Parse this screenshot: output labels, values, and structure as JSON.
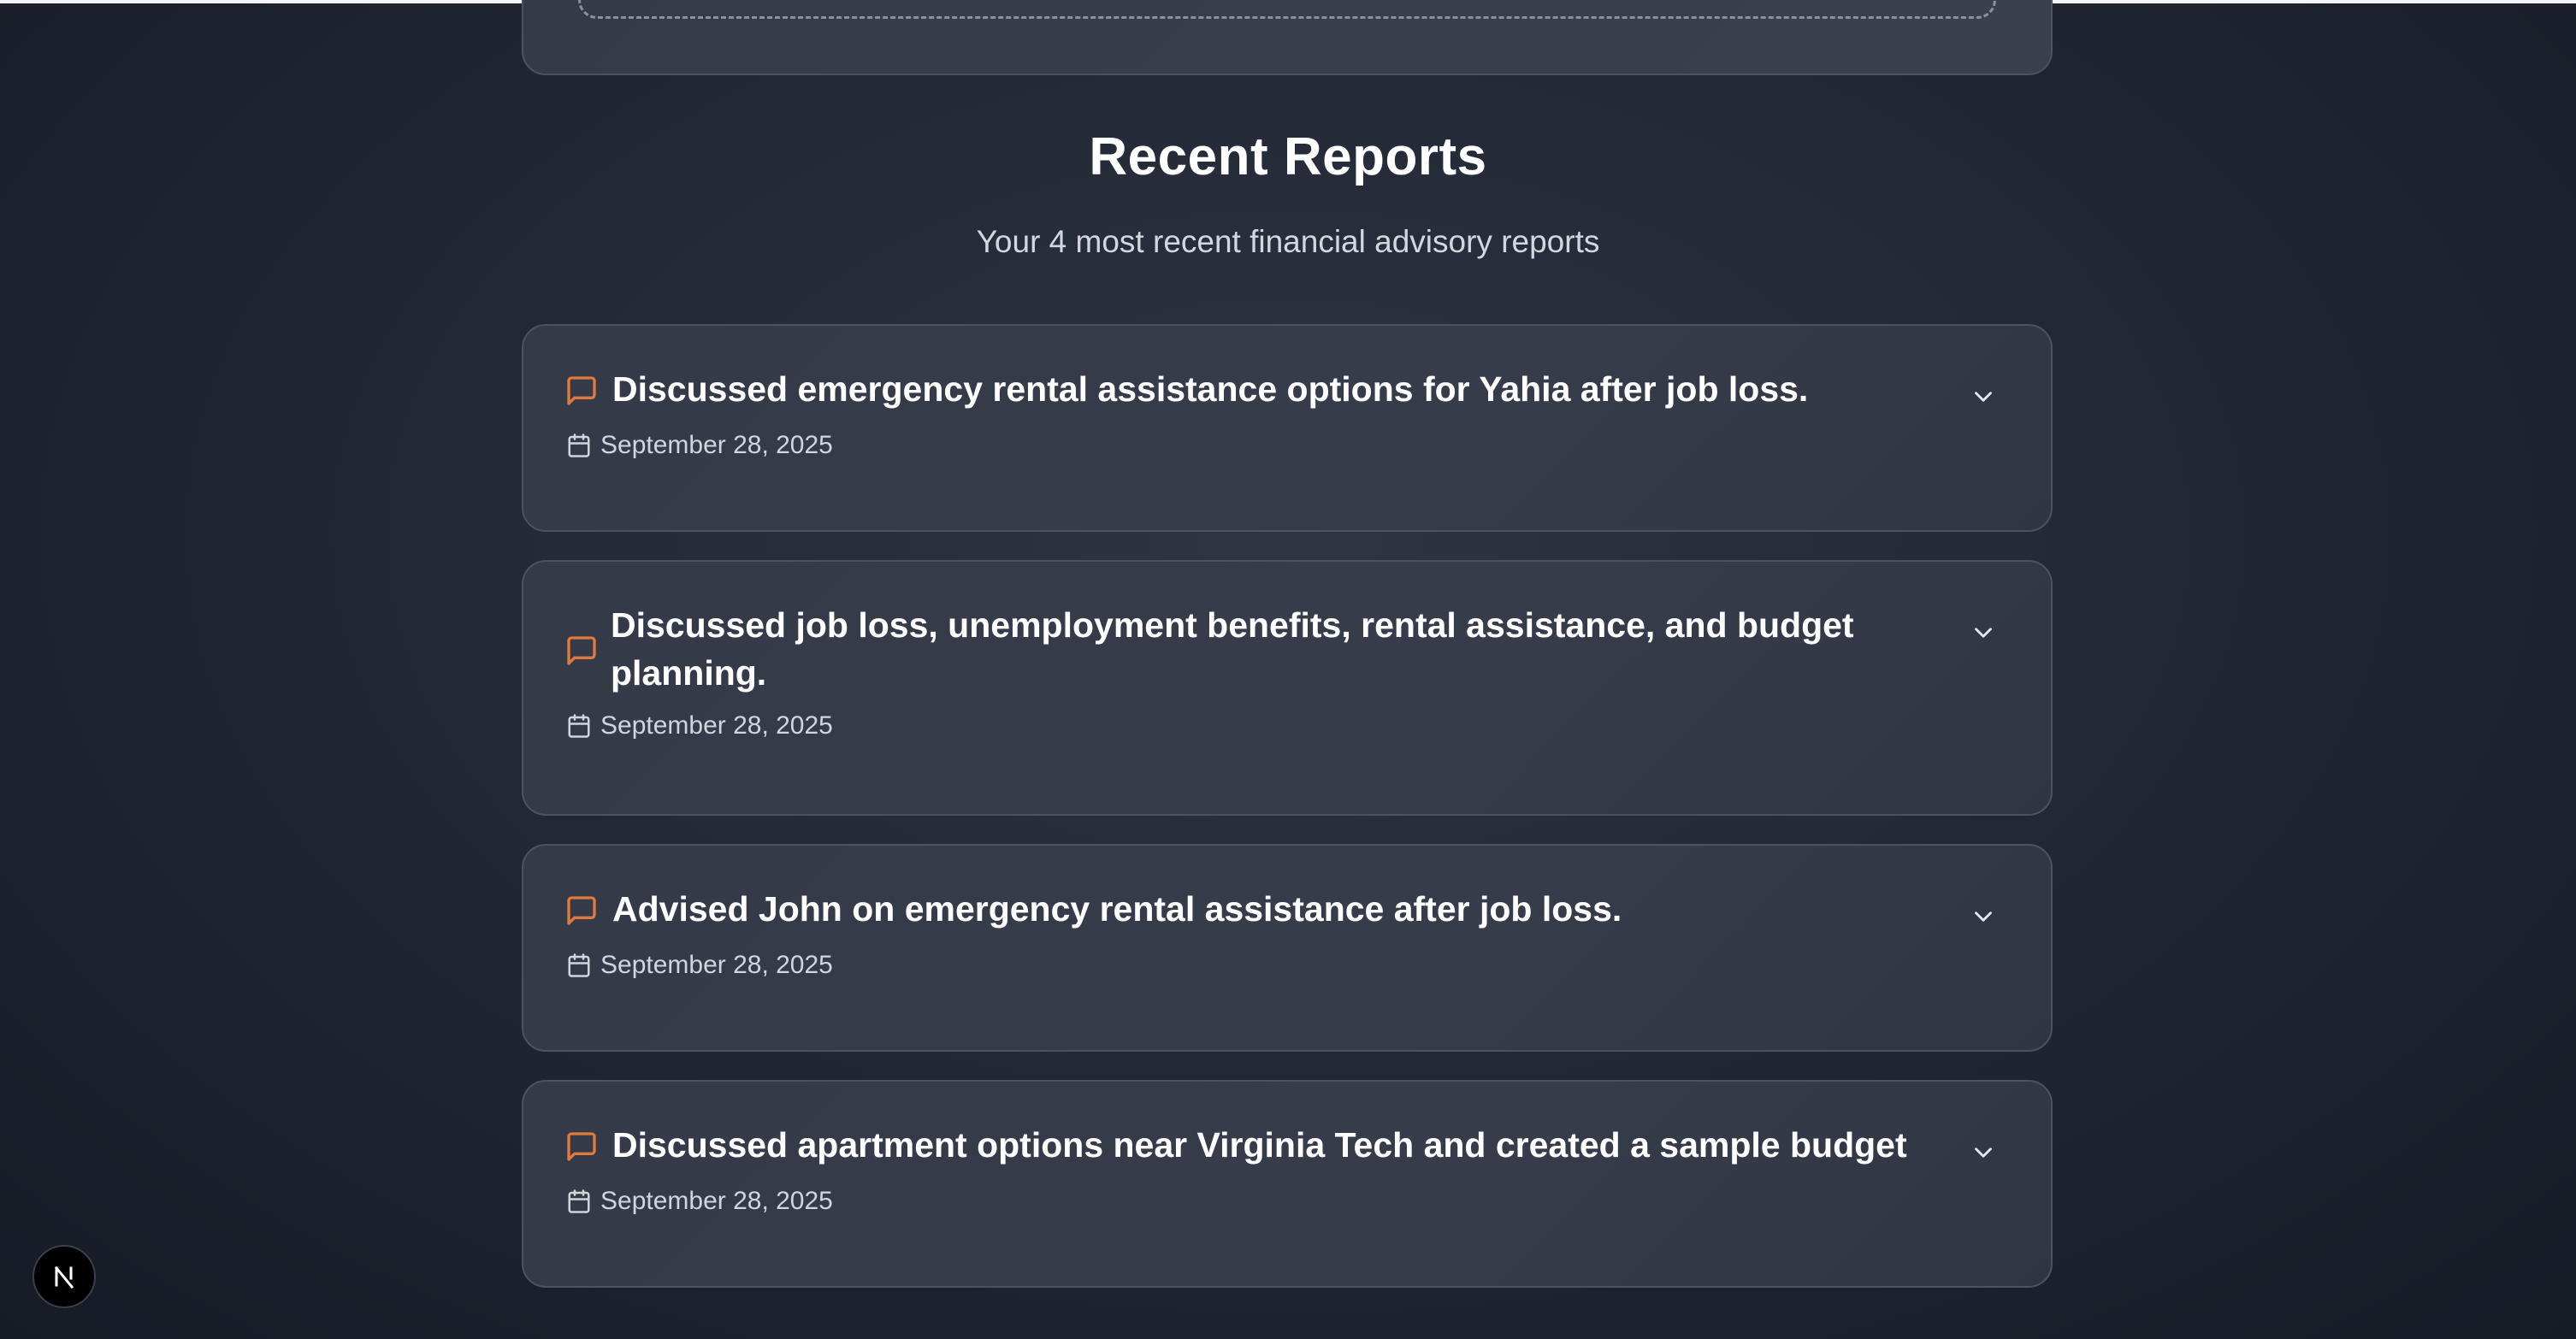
{
  "section": {
    "title": "Recent Reports",
    "subtitle": "Your 4 most recent financial advisory reports"
  },
  "reports": [
    {
      "title": "Discussed emergency rental assistance options for Yahia after job loss.",
      "date": "September 28, 2025"
    },
    {
      "title": "Discussed job loss, unemployment benefits, rental assistance, and budget planning.",
      "date": "September 28, 2025"
    },
    {
      "title": "Advised John on emergency rental assistance after job loss.",
      "date": "September 28, 2025"
    },
    {
      "title": "Discussed apartment options near Virginia Tech and created a sample budget",
      "date": "September 28, 2025"
    }
  ],
  "icons": {
    "report": "message-square-icon",
    "date": "calendar-icon",
    "expand": "chevron-down-icon",
    "badge": "nextjs-logo-icon"
  },
  "colors": {
    "accent": "#e07a3f",
    "background": "#1f2430",
    "card": "#363c4a",
    "text_muted": "#d2d5dc"
  }
}
